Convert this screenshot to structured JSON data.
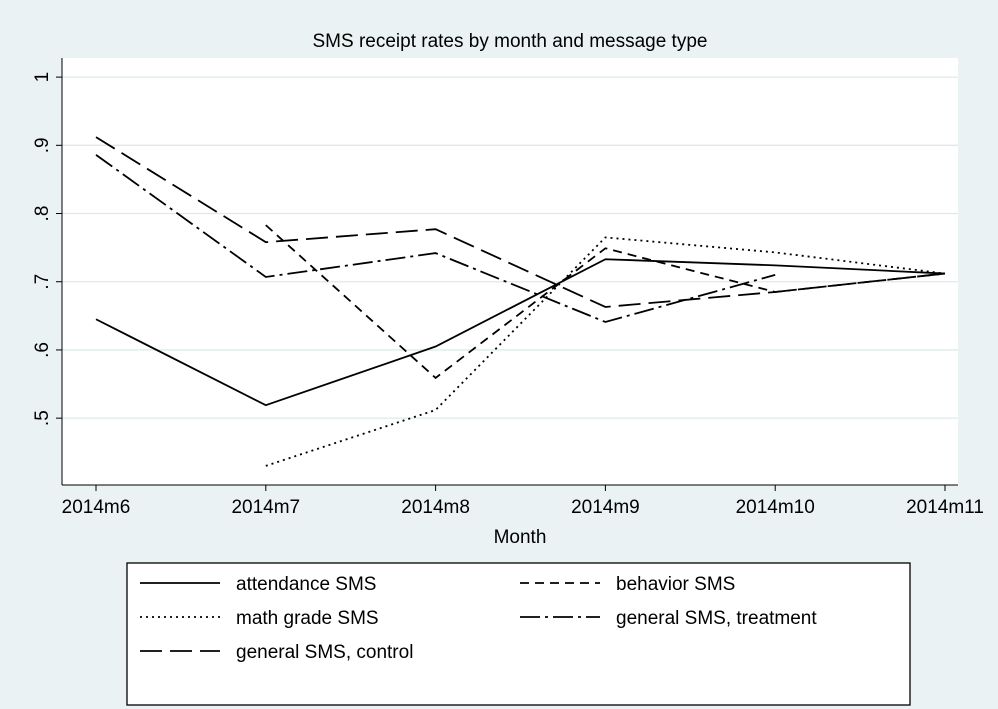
{
  "chart_data": {
    "type": "line",
    "title": "SMS receipt rates by month and message type",
    "x_label": "Month",
    "categories": [
      "2014m6",
      "2014m7",
      "2014m8",
      "2014m9",
      "2014m10",
      "2014m11"
    ],
    "series": [
      {
        "name": "attendance SMS",
        "color": "#000000",
        "dash": "none",
        "values": [
          0.645,
          0.519,
          0.605,
          0.733,
          0.724,
          0.712
        ]
      },
      {
        "name": "behavior SMS",
        "color": "#000000",
        "dash": "9,6",
        "values": [
          null,
          0.783,
          0.559,
          0.749,
          0.685,
          0.712
        ]
      },
      {
        "name": "math grade SMS",
        "color": "#000000",
        "dash": "2,4",
        "values": [
          null,
          0.43,
          0.512,
          0.765,
          0.743,
          0.712
        ]
      },
      {
        "name": "general SMS, treatment",
        "color": "#000000",
        "dash": "20,5,3,5",
        "values": [
          0.886,
          0.707,
          0.742,
          0.641,
          0.71,
          null
        ]
      },
      {
        "name": "general SMS, control",
        "color": "#000000",
        "dash": "22,8",
        "values": [
          0.912,
          0.758,
          0.777,
          0.663,
          0.685,
          0.712
        ]
      }
    ],
    "ylim": [
      0.402,
      1.028
    ],
    "yticks": [
      {
        "value": 0.5,
        "label": ".5"
      },
      {
        "value": 0.6,
        "label": ".6"
      },
      {
        "value": 0.7,
        "label": ".7"
      },
      {
        "value": 0.8,
        "label": ".8"
      },
      {
        "value": 0.9,
        "label": ".9"
      },
      1
    ],
    "grid": true
  }
}
